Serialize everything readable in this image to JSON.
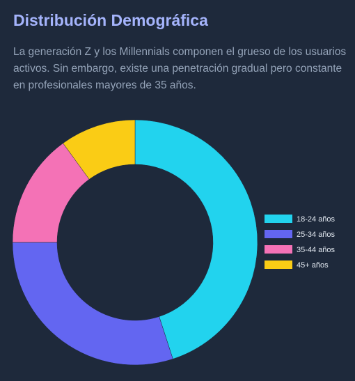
{
  "chart_data": {
    "type": "doughnut",
    "title": "Distribución Demográfica",
    "subtitle": "La generación Z y los Millennials componen el grueso de los usuarios activos. Sin embargo, existe una penetración gradual pero constante en profesionales mayores de 35 años.",
    "categories": [
      "18-24 años",
      "25-34 años",
      "35-44 años",
      "45+ años"
    ],
    "values": [
      45,
      30,
      15,
      10
    ],
    "colors": [
      "#22d3ee",
      "#6366f1",
      "#f472b6",
      "#facc15"
    ],
    "legend": "right"
  }
}
